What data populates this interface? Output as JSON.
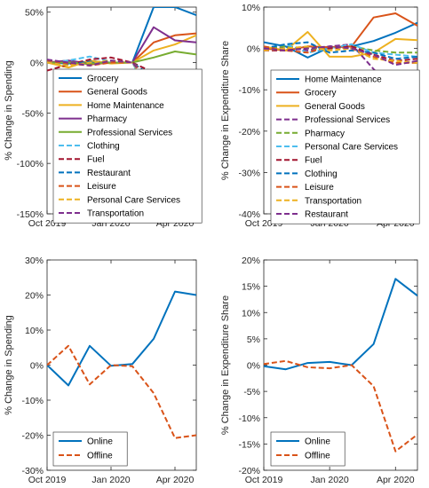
{
  "chart_data": [
    {
      "type": "line",
      "ylabel": "% Change in Spending",
      "ylim": [
        -150,
        55
      ],
      "yticks": [
        -150,
        -100,
        -50,
        0,
        50
      ],
      "x_tick_labels": [
        "Oct 2019",
        "Jan 2020",
        "Apr 2020"
      ],
      "x_tick_index": [
        0,
        3,
        6
      ],
      "x": [
        "Oct 2019",
        "Nov 2019",
        "Dec 2019",
        "Jan 2020",
        "Feb 2020",
        "Mar 2020",
        "Apr 2020",
        "May 2020"
      ],
      "legend_position": "center",
      "series": [
        {
          "name": "Grocery",
          "color": "#0072BD",
          "dash": "solid",
          "values": [
            0,
            -1,
            1,
            0,
            0,
            55,
            55,
            47
          ]
        },
        {
          "name": "General Goods",
          "color": "#D95319",
          "dash": "solid",
          "values": [
            0,
            2,
            -2,
            0,
            0,
            20,
            27,
            29
          ]
        },
        {
          "name": "Home Maintenance",
          "color": "#EDB120",
          "dash": "solid",
          "values": [
            0,
            -5,
            2,
            -1,
            0,
            12,
            18,
            27
          ]
        },
        {
          "name": "Pharmacy",
          "color": "#7E2F8E",
          "dash": "solid",
          "values": [
            0,
            2,
            -1,
            0,
            0,
            35,
            22,
            20
          ]
        },
        {
          "name": "Professional Services",
          "color": "#77AC30",
          "dash": "solid",
          "values": [
            0,
            0,
            -1,
            0,
            0,
            5,
            11,
            8
          ]
        },
        {
          "name": "Clothing",
          "color": "#4DBEEE",
          "dash": "dashed",
          "values": [
            0,
            2,
            6,
            1,
            0,
            -40,
            -25,
            -18
          ]
        },
        {
          "name": "Fuel",
          "color": "#A2142F",
          "dash": "dashed",
          "values": [
            -8,
            -2,
            3,
            5,
            0,
            -10,
            -35,
            -30
          ]
        },
        {
          "name": "Restaurant",
          "color": "#0072BD",
          "dash": "dashed",
          "values": [
            0,
            -2,
            1,
            0,
            0,
            -15,
            -30,
            -25
          ]
        },
        {
          "name": "Leisure",
          "color": "#D95319",
          "dash": "dashed",
          "values": [
            2,
            -1,
            -3,
            0,
            0,
            -20,
            -42,
            -40
          ]
        },
        {
          "name": "Personal Care Services",
          "color": "#EDB120",
          "dash": "dashed",
          "values": [
            0,
            -3,
            0,
            2,
            0,
            -30,
            -52,
            -38
          ]
        },
        {
          "name": "Transportation",
          "color": "#7E2F8E",
          "dash": "dashed",
          "values": [
            3,
            0,
            -3,
            2,
            0,
            -25,
            -45,
            -42
          ]
        }
      ]
    },
    {
      "type": "line",
      "ylabel": "% Change in Expenditure Share",
      "ylim": [
        -40,
        10
      ],
      "yticks": [
        -40,
        -30,
        -20,
        -10,
        0,
        10
      ],
      "x_tick_labels": [
        "Oct 2019",
        "Jan 2020",
        "Apr 2020"
      ],
      "x_tick_index": [
        0,
        3,
        6
      ],
      "x": [
        "Oct 2019",
        "Nov 2019",
        "Dec 2019",
        "Jan 2020",
        "Feb 2020",
        "Mar 2020",
        "Apr 2020",
        "May 2020"
      ],
      "legend_position": "center",
      "series": [
        {
          "name": "Home Maintenance",
          "color": "#0072BD",
          "dash": "solid",
          "values": [
            1.5,
            0.5,
            -2.2,
            0.3,
            0.5,
            1.8,
            3.8,
            6.2
          ]
        },
        {
          "name": "Grocery",
          "color": "#D95319",
          "dash": "solid",
          "values": [
            0,
            -0.5,
            0.5,
            0.3,
            0.5,
            7.5,
            8.5,
            5.5
          ]
        },
        {
          "name": "General Goods",
          "color": "#EDB120",
          "dash": "solid",
          "values": [
            0.5,
            -0.5,
            4,
            -2,
            -2,
            -1,
            2.3,
            2
          ]
        },
        {
          "name": "Professional Services",
          "color": "#7E2F8E",
          "dash": "dashed",
          "values": [
            -0.5,
            0.5,
            -0.5,
            0.5,
            1,
            -5,
            -10.5,
            -8
          ]
        },
        {
          "name": "Pharmacy",
          "color": "#77AC30",
          "dash": "dashed",
          "values": [
            0,
            0.5,
            0,
            0,
            0.5,
            -0.5,
            -1,
            -1
          ]
        },
        {
          "name": "Personal Care Services",
          "color": "#4DBEEE",
          "dash": "dashed",
          "values": [
            0,
            1,
            -1,
            0,
            1,
            -1,
            -1.5,
            -2
          ]
        },
        {
          "name": "Fuel",
          "color": "#A2142F",
          "dash": "dashed",
          "values": [
            -0.5,
            -0.5,
            0.5,
            0,
            0.5,
            -1.5,
            -3,
            -2.5
          ]
        },
        {
          "name": "Clothing",
          "color": "#0072BD",
          "dash": "dashed",
          "values": [
            0,
            1,
            1.5,
            -1,
            -0.5,
            -1,
            -2.5,
            -2
          ]
        },
        {
          "name": "Leisure",
          "color": "#D95319",
          "dash": "dashed",
          "values": [
            0.5,
            -0.5,
            -1,
            0.5,
            0,
            -2,
            -3.5,
            -3.5
          ]
        },
        {
          "name": "Transportation",
          "color": "#EDB120",
          "dash": "dashed",
          "values": [
            -0.5,
            0,
            0.5,
            -0.5,
            0,
            -2.5,
            -3,
            -3.5
          ]
        },
        {
          "name": "Restaurant",
          "color": "#7E2F8E",
          "dash": "dashed",
          "values": [
            0,
            -0.5,
            0,
            0.5,
            0,
            -1.5,
            -4,
            -3
          ]
        }
      ]
    },
    {
      "type": "line",
      "ylabel": "% Change in Spending",
      "ylim": [
        -30,
        30
      ],
      "yticks": [
        -30,
        -20,
        -10,
        0,
        10,
        20,
        30
      ],
      "x_tick_labels": [
        "Oct 2019",
        "Jan 2020",
        "Apr 2020"
      ],
      "x_tick_index": [
        0,
        3,
        6
      ],
      "x": [
        "Oct 2019",
        "Nov 2019",
        "Dec 2019",
        "Jan 2020",
        "Feb 2020",
        "Mar 2020",
        "Apr 2020",
        "May 2020"
      ],
      "legend_position": "bottom-left",
      "series": [
        {
          "name": "Online",
          "color": "#0072BD",
          "dash": "solid",
          "values": [
            0,
            -5.8,
            5.5,
            -0.2,
            0.3,
            7.5,
            21,
            20
          ]
        },
        {
          "name": "Offline",
          "color": "#D95319",
          "dash": "dashed",
          "values": [
            0,
            5.5,
            -5.5,
            0,
            -0.3,
            -8,
            -20.8,
            -20
          ]
        }
      ]
    },
    {
      "type": "line",
      "ylabel": "% Change in Expenditure Share",
      "ylim": [
        -20,
        20
      ],
      "yticks": [
        -20,
        -15,
        -10,
        -5,
        0,
        5,
        10,
        15,
        20
      ],
      "x_tick_labels": [
        "Oct 2019",
        "Jan 2020",
        "Apr 2020"
      ],
      "x_tick_index": [
        0,
        3,
        6
      ],
      "x": [
        "Oct 2019",
        "Nov 2019",
        "Dec 2019",
        "Jan 2020",
        "Feb 2020",
        "Mar 2020",
        "Apr 2020",
        "May 2020"
      ],
      "legend_position": "bottom-right",
      "series": [
        {
          "name": "Online",
          "color": "#0072BD",
          "dash": "solid",
          "values": [
            -0.2,
            -0.8,
            0.4,
            0.6,
            0,
            4,
            16.4,
            13.2
          ]
        },
        {
          "name": "Offline",
          "color": "#D95319",
          "dash": "dashed",
          "values": [
            0.2,
            0.8,
            -0.4,
            -0.6,
            0,
            -4,
            -16.4,
            -13.2
          ]
        }
      ]
    }
  ]
}
